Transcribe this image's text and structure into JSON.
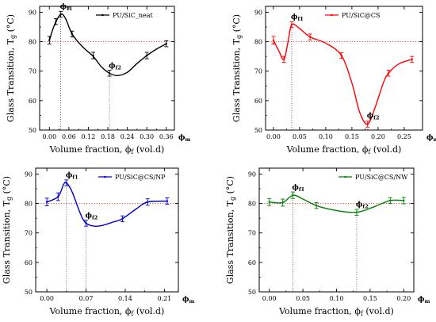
{
  "chart_data": [
    {
      "type": "line",
      "legend": "PU/SiC_neat",
      "color": "#000000",
      "ylabel": "Glass Transition, T",
      "ylabel_sub": "g",
      "ylabel_unit": " (°C)",
      "xlabel": "Volume fraction, ϕ",
      "xlabel_sub": "f",
      "xlabel_unit": " (vol.d)",
      "phi_m": "ϕm",
      "xlim": [
        -0.03,
        0.385
      ],
      "ylim": [
        50,
        92
      ],
      "xticks": [
        0.0,
        0.06,
        0.12,
        0.18,
        0.24,
        0.3,
        0.36
      ],
      "xtick_labels": [
        "0.00",
        "0.06",
        "0.12",
        "0.18",
        "0.24",
        "0.30",
        "0.36"
      ],
      "yticks": [
        50,
        60,
        70,
        80,
        90
      ],
      "ref_y": 80,
      "points": [
        {
          "x": 0.0,
          "y": 80.5,
          "err": 1.3
        },
        {
          "x": 0.02,
          "y": 86.8,
          "err": 1.0
        },
        {
          "x": 0.035,
          "y": 89.3,
          "err": 1.0
        },
        {
          "x": 0.07,
          "y": 82.6,
          "err": 1.0
        },
        {
          "x": 0.135,
          "y": 75.3,
          "err": 1.1
        },
        {
          "x": 0.185,
          "y": 69.3,
          "err": 1.0
        },
        {
          "x": 0.3,
          "y": 75.3,
          "err": 1.1
        },
        {
          "x": 0.36,
          "y": 79.3,
          "err": 1.0
        }
      ],
      "curve": [
        [
          0.0,
          80.5
        ],
        [
          0.015,
          85.5
        ],
        [
          0.035,
          89.3
        ],
        [
          0.05,
          87.8
        ],
        [
          0.07,
          82.6
        ],
        [
          0.1,
          78.5
        ],
        [
          0.135,
          75.0
        ],
        [
          0.16,
          71.5
        ],
        [
          0.185,
          69.3
        ],
        [
          0.21,
          68.5
        ],
        [
          0.24,
          69.6
        ],
        [
          0.27,
          72.6
        ],
        [
          0.3,
          75.3
        ],
        [
          0.33,
          77.5
        ],
        [
          0.36,
          79.3
        ]
      ],
      "annotations": [
        {
          "label": "ϕ",
          "sub": "f1",
          "x": 0.035,
          "y": 89.3
        },
        {
          "label": "ϕ",
          "sub": "f2",
          "x": 0.185,
          "y": 69.3
        }
      ]
    },
    {
      "type": "line",
      "legend": "PU/SiC@CS",
      "color": "#ff0000",
      "ylabel": "Glass Transition, T",
      "ylabel_sub": "g",
      "ylabel_unit": " (°C)",
      "xlabel": "Volume fraction, ϕ",
      "xlabel_sub": "f",
      "xlabel_unit": " (vol.d)",
      "phi_m": "ϕm",
      "xlim": [
        -0.015,
        0.285
      ],
      "ylim": [
        50,
        92
      ],
      "xticks": [
        0.0,
        0.05,
        0.1,
        0.15,
        0.2,
        0.25
      ],
      "xtick_labels": [
        "0.00",
        "0.05",
        "0.10",
        "0.15",
        "0.20",
        "0.25"
      ],
      "yticks": [
        50,
        60,
        70,
        80,
        90
      ],
      "ref_y": 80,
      "points": [
        {
          "x": 0.0,
          "y": 80.5,
          "err": 1.3
        },
        {
          "x": 0.02,
          "y": 74.0,
          "err": 1.0
        },
        {
          "x": 0.035,
          "y": 85.8,
          "err": 1.0
        },
        {
          "x": 0.07,
          "y": 81.6,
          "err": 1.0
        },
        {
          "x": 0.13,
          "y": 75.3,
          "err": 1.0
        },
        {
          "x": 0.18,
          "y": 52.0,
          "err": 1.0
        },
        {
          "x": 0.22,
          "y": 69.3,
          "err": 1.0
        },
        {
          "x": 0.265,
          "y": 74.0,
          "err": 1.0
        }
      ],
      "curve": [
        [
          0.0,
          80.5
        ],
        [
          0.01,
          77.0
        ],
        [
          0.02,
          74.0
        ],
        [
          0.028,
          80.0
        ],
        [
          0.035,
          85.8
        ],
        [
          0.05,
          84.5
        ],
        [
          0.07,
          81.6
        ],
        [
          0.1,
          79.5
        ],
        [
          0.13,
          75.3
        ],
        [
          0.15,
          66.0
        ],
        [
          0.165,
          56.0
        ],
        [
          0.18,
          52.0
        ],
        [
          0.195,
          58.0
        ],
        [
          0.21,
          66.0
        ],
        [
          0.22,
          69.3
        ],
        [
          0.24,
          72.5
        ],
        [
          0.265,
          74.0
        ]
      ],
      "annotations": [
        {
          "label": "ϕ",
          "sub": "f1",
          "x": 0.035,
          "y": 85.8
        },
        {
          "label": "ϕ",
          "sub": "f2",
          "x": 0.18,
          "y": 52.0
        }
      ]
    },
    {
      "type": "line",
      "legend": "PU/SiC@CS/NP",
      "color": "#0000cc",
      "ylabel": "Glass Transition, T",
      "ylabel_sub": "g",
      "ylabel_unit": " (°C)",
      "xlabel": "Volume fraction, ϕ",
      "xlabel_sub": "f",
      "xlabel_unit": " (vol.d)",
      "phi_m": "ϕm",
      "xlim": [
        -0.02,
        0.235
      ],
      "ylim": [
        50,
        92
      ],
      "xticks": [
        0.0,
        0.07,
        0.14,
        0.21
      ],
      "xtick_labels": [
        "0.00",
        "0.07",
        "0.14",
        "0.21"
      ],
      "yticks": [
        50,
        60,
        70,
        80,
        90
      ],
      "ref_y": 80,
      "points": [
        {
          "x": 0.0,
          "y": 80.5,
          "err": 1.3
        },
        {
          "x": 0.02,
          "y": 82.3,
          "err": 1.3
        },
        {
          "x": 0.035,
          "y": 87.0,
          "err": 1.0
        },
        {
          "x": 0.07,
          "y": 73.3,
          "err": 1.0
        },
        {
          "x": 0.135,
          "y": 74.8,
          "err": 1.0
        },
        {
          "x": 0.18,
          "y": 80.5,
          "err": 1.1
        },
        {
          "x": 0.215,
          "y": 80.8,
          "err": 1.1
        }
      ],
      "curve": [
        [
          0.0,
          80.5
        ],
        [
          0.02,
          82.3
        ],
        [
          0.03,
          86.5
        ],
        [
          0.035,
          87.0
        ],
        [
          0.045,
          84.0
        ],
        [
          0.06,
          76.5
        ],
        [
          0.07,
          73.3
        ],
        [
          0.085,
          72.3
        ],
        [
          0.1,
          72.6
        ],
        [
          0.12,
          73.8
        ],
        [
          0.135,
          74.8
        ],
        [
          0.16,
          78.2
        ],
        [
          0.18,
          80.5
        ],
        [
          0.215,
          80.8
        ]
      ],
      "annotations": [
        {
          "label": "ϕ",
          "sub": "f1",
          "x": 0.035,
          "y": 87.0
        },
        {
          "label": "ϕ",
          "sub": "f2",
          "x": 0.07,
          "y": 73.3
        }
      ]
    },
    {
      "type": "line",
      "legend": "PU/SiC@CS/NW",
      "color": "#008000",
      "ylabel": "Glass Transition, T",
      "ylabel_sub": "g",
      "ylabel_unit": " (°C)",
      "xlabel": "Volume fraction, ϕ",
      "xlabel_sub": "f",
      "xlabel_unit": " (vol.d)",
      "phi_m": "ϕm",
      "xlim": [
        -0.015,
        0.215
      ],
      "ylim": [
        50,
        92
      ],
      "xticks": [
        0.0,
        0.05,
        0.1,
        0.15,
        0.2
      ],
      "xtick_labels": [
        "0.00",
        "0.05",
        "0.10",
        "0.15",
        "0.20"
      ],
      "yticks": [
        50,
        60,
        70,
        80,
        90
      ],
      "ref_y": 80,
      "points": [
        {
          "x": 0.0,
          "y": 80.5,
          "err": 1.2
        },
        {
          "x": 0.02,
          "y": 80.3,
          "err": 1.2
        },
        {
          "x": 0.035,
          "y": 82.8,
          "err": 1.1
        },
        {
          "x": 0.07,
          "y": 79.3,
          "err": 1.0
        },
        {
          "x": 0.13,
          "y": 77.0,
          "err": 1.0
        },
        {
          "x": 0.18,
          "y": 81.0,
          "err": 1.0
        },
        {
          "x": 0.2,
          "y": 81.0,
          "err": 1.1
        }
      ],
      "curve": [
        [
          0.0,
          80.5
        ],
        [
          0.02,
          80.3
        ],
        [
          0.035,
          82.8
        ],
        [
          0.05,
          81.5
        ],
        [
          0.07,
          79.3
        ],
        [
          0.1,
          77.6
        ],
        [
          0.13,
          77.0
        ],
        [
          0.155,
          78.8
        ],
        [
          0.18,
          81.0
        ],
        [
          0.2,
          81.0
        ]
      ],
      "annotations": [
        {
          "label": "ϕ",
          "sub": "f1",
          "x": 0.035,
          "y": 82.8
        },
        {
          "label": "ϕ",
          "sub": "f2",
          "x": 0.13,
          "y": 77.0
        }
      ]
    }
  ]
}
